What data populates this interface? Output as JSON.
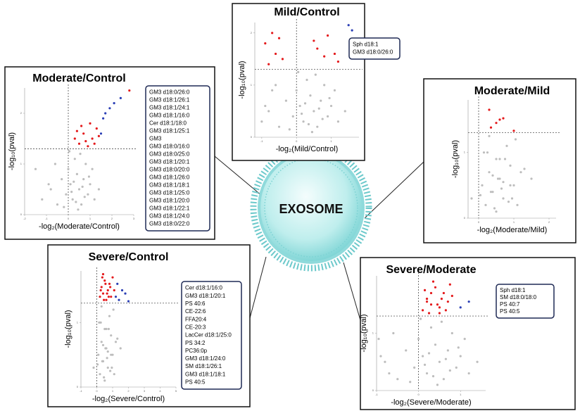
{
  "center_label": "EXOSOME",
  "chart_data": [
    {
      "type": "scatter",
      "title": "Moderate/Control",
      "x_label": "-log₂(Moderate/Control)",
      "y_label": "-log₁₀(pval)",
      "xlim": [
        -2,
        3
      ],
      "ylim": [
        0,
        2.5
      ],
      "xticks": [
        -2,
        -1,
        0,
        1,
        2,
        3
      ],
      "yticks": [
        0,
        1,
        2
      ],
      "vline": 0,
      "hline": 1.3,
      "annotations": [
        "GM3 d18:0/26:0",
        "GM3 d18:1/26:1",
        "GM3 d18:1/24:1",
        "GM3 d18:1/16:0",
        "Cer d18:1/18:0",
        "GM3 d18:1/25:1",
        "GM3",
        "GM3 d18:0/16:0",
        "GM3 d18:0/25:0",
        "GM3 d18:1/20:1",
        "GM3 d18:0/20:0",
        "GM3 d18:1/26:0",
        "GM3 d18:1/18:1",
        "GM3 d18:1/25:0",
        "GM3 d18:1/20:0",
        "GM3 d18:1/22:1",
        "GM3 d18:1/24:0",
        "GM3 d18:0/22:0"
      ],
      "series": [
        {
          "color": "#bdbdbd",
          "x": [
            -1.2,
            -0.8,
            -0.5,
            -0.3,
            -0.1,
            0,
            0.1,
            0.2,
            0.3,
            0.4,
            0.5,
            0.6,
            0.7,
            0.8,
            0.9,
            1.0,
            1.1,
            1.2,
            -0.6,
            -0.2,
            0.15,
            0.35,
            0.55,
            0.75,
            0.95,
            -0.9,
            0.05,
            0.45,
            0.65,
            1.4,
            -1.5,
            0.25
          ],
          "y": [
            0.3,
            0.5,
            0.2,
            0.7,
            0.4,
            0.9,
            0.6,
            0.3,
            1.1,
            0.8,
            0.5,
            0.2,
            0.7,
            1.0,
            0.4,
            0.6,
            0.9,
            0.3,
            1.0,
            0.15,
            0.45,
            0.25,
            1.2,
            0.35,
            0.75,
            0.6,
            1.25,
            0.1,
            0.55,
            0.5,
            0.9,
            0.65
          ]
        },
        {
          "color": "#e41a1c",
          "x": [
            0.3,
            0.5,
            0.7,
            0.9,
            1.1,
            1.3,
            0.6,
            0.8,
            1.0,
            1.2,
            0.4,
            1.4,
            2.8
          ],
          "y": [
            1.5,
            1.4,
            1.6,
            1.35,
            1.5,
            1.7,
            1.75,
            1.45,
            1.8,
            1.4,
            1.65,
            1.55,
            2.45
          ]
        },
        {
          "color": "#2b3fb5",
          "x": [
            1.5,
            1.6,
            1.7,
            1.9,
            2.1,
            2.4
          ],
          "y": [
            1.6,
            1.9,
            2.0,
            2.1,
            2.2,
            2.3
          ]
        }
      ]
    },
    {
      "type": "scatter",
      "title": "Mild/Control",
      "x_label": "-log₂(Mild/Control)",
      "y_label": "-log₁₀(pval)",
      "xlim": [
        -1.2,
        1.8
      ],
      "ylim": [
        0,
        2.2
      ],
      "xticks": [
        -1,
        0,
        1
      ],
      "yticks": [
        0,
        1,
        2
      ],
      "vline": 0,
      "hline": 1.3,
      "annotations": [
        "Sph d18:1",
        "GM3 d18:0/26:0"
      ],
      "series": [
        {
          "color": "#bdbdbd",
          "x": [
            -1.0,
            -0.8,
            -0.5,
            -0.3,
            -0.1,
            0,
            0.1,
            0.2,
            0.3,
            0.4,
            0.5,
            0.6,
            0.7,
            0.8,
            0.9,
            1.0,
            1.1,
            1.2,
            -0.6,
            -0.2,
            0.15,
            0.35,
            0.55,
            0.75,
            0.95,
            -0.9,
            0.05,
            0.45,
            0.65,
            1.4,
            -0.7,
            0.25
          ],
          "y": [
            0.3,
            0.5,
            0.2,
            0.7,
            0.4,
            0.9,
            0.6,
            0.3,
            1.1,
            0.8,
            0.5,
            0.2,
            0.7,
            1.0,
            0.4,
            0.6,
            0.9,
            0.3,
            1.0,
            0.15,
            0.45,
            0.25,
            1.2,
            0.35,
            0.75,
            0.6,
            1.25,
            0.1,
            0.55,
            0.5,
            0.9,
            0.65
          ]
        },
        {
          "color": "#e41a1c",
          "x": [
            -0.9,
            -0.7,
            -0.6,
            -0.4,
            -0.5,
            0.6,
            0.8,
            0.9,
            1.1,
            1.2,
            0.5,
            -0.8
          ],
          "y": [
            1.8,
            2.0,
            1.6,
            1.5,
            1.9,
            1.7,
            1.55,
            1.95,
            1.6,
            1.45,
            1.85,
            1.4
          ]
        },
        {
          "color": "#2b3fb5",
          "x": [
            1.5,
            1.6
          ],
          "y": [
            2.15,
            2.05
          ]
        }
      ]
    },
    {
      "type": "scatter",
      "title": "Moderate/Mild",
      "x_label": "-log₂(Moderate/Mild)",
      "y_label": "-log₁₀(pval)",
      "xlim": [
        -0.3,
        2.2
      ],
      "ylim": [
        0,
        1.8
      ],
      "xticks": [
        0,
        1,
        2
      ],
      "yticks": [
        0,
        1
      ],
      "vline": 0,
      "hline": 1.3,
      "series": [
        {
          "color": "#bdbdbd",
          "x": [
            -0.2,
            0.1,
            0.2,
            0.3,
            0.4,
            0.5,
            0.6,
            0.7,
            0.8,
            0.9,
            1.0,
            1.1,
            1.2,
            0.15,
            0.35,
            0.55,
            0.75,
            0.95,
            0.25,
            0.45,
            0.65,
            0.85,
            1.05,
            0.05,
            1.3,
            1.5,
            0.3,
            0.5,
            0.7,
            0.9,
            0.6,
            0.4
          ],
          "y": [
            0.3,
            0.5,
            0.2,
            0.7,
            0.4,
            0.9,
            0.6,
            0.3,
            1.1,
            0.8,
            0.5,
            0.2,
            0.7,
            1.0,
            0.4,
            0.6,
            0.9,
            0.3,
            1.0,
            0.15,
            0.45,
            0.25,
            1.2,
            0.35,
            0.75,
            0.6,
            1.25,
            0.1,
            0.55,
            0.5,
            0.9,
            0.65
          ]
        },
        {
          "color": "#e41a1c",
          "x": [
            0.3,
            0.5,
            0.6,
            0.7,
            0.35,
            1.0
          ],
          "y": [
            1.65,
            1.45,
            1.5,
            1.52,
            1.38,
            1.33
          ]
        }
      ]
    },
    {
      "type": "scatter",
      "title": "Severe/Control",
      "x_label": "-log₂(Severe/Control)",
      "y_label": "-log₁₀(pval)",
      "xlim": [
        -1,
        5
      ],
      "ylim": [
        0,
        1.8
      ],
      "xticks": [
        -1,
        0,
        1,
        2,
        3,
        4,
        5
      ],
      "yticks": [
        0,
        1
      ],
      "vline": 0,
      "hline": 1.3,
      "annotations": [
        "Cer d18:1/16:0",
        "GM3 d18:1/20:1",
        "PS 40:6",
        "CE-22:6",
        "FFA20:4",
        "CE-20:3",
        "LacCer d18:1/25:0",
        "PS 34:2",
        "PC36:0p",
        "GM3 d18:1/24:0",
        "SM d18:1/26:1",
        "GM3 d18:1/18:1",
        "PS 40:5"
      ],
      "series": [
        {
          "color": "#bdbdbd",
          "x": [
            -0.2,
            0.1,
            0.2,
            0.3,
            0.4,
            0.5,
            0.6,
            0.7,
            0.8,
            0.9,
            1.0,
            1.1,
            1.2,
            0.15,
            0.35,
            0.55,
            0.75,
            0.95,
            0.25,
            0.45,
            0.65,
            0.85,
            1.05,
            0.05,
            1.3,
            1.5,
            0.3,
            0.5,
            0.7,
            0.9,
            0.6,
            0.4
          ],
          "y": [
            0.3,
            0.5,
            0.2,
            0.7,
            0.4,
            0.9,
            0.6,
            0.3,
            1.1,
            0.8,
            0.5,
            0.2,
            0.7,
            1.0,
            0.4,
            0.6,
            0.9,
            0.3,
            1.0,
            0.15,
            0.45,
            0.25,
            1.2,
            0.35,
            0.75,
            0.6,
            1.25,
            0.1,
            0.55,
            0.5,
            0.9,
            0.65
          ]
        },
        {
          "color": "#e41a1c",
          "x": [
            0.2,
            0.3,
            0.4,
            0.5,
            0.6,
            0.7,
            0.8,
            0.9,
            1.0,
            0.25,
            0.45,
            0.65,
            0.85,
            0.35,
            0.55,
            0.75,
            1.1,
            0.4
          ],
          "y": [
            1.4,
            1.55,
            1.45,
            1.65,
            1.35,
            1.5,
            1.6,
            1.4,
            1.7,
            1.5,
            1.35,
            1.45,
            1.55,
            1.7,
            1.6,
            1.4,
            1.5,
            1.75
          ]
        },
        {
          "color": "#2b3fb5",
          "x": [
            1.2,
            1.4,
            1.6,
            1.8,
            1.3,
            2.0
          ],
          "y": [
            1.4,
            1.35,
            1.5,
            1.45,
            1.6,
            1.33
          ]
        }
      ]
    },
    {
      "type": "scatter",
      "title": "Severe/Moderate",
      "x_label": "-log₂(Severe/Moderate)",
      "y_label": "-log₁₀(pval)",
      "xlim": [
        -1,
        1.6
      ],
      "ylim": [
        0,
        2
      ],
      "xticks": [
        -1,
        0,
        1
      ],
      "yticks": [
        0,
        1
      ],
      "vline": 0,
      "hline": 1.3,
      "annotations": [
        "Sph d18:1",
        "SM d18:0/18:0",
        "PS 40:7",
        "PS 40:5"
      ],
      "series": [
        {
          "color": "#bdbdbd",
          "x": [
            -0.7,
            -0.8,
            -0.5,
            -0.3,
            -0.1,
            0,
            0.1,
            0.2,
            0.3,
            0.4,
            0.5,
            0.6,
            0.7,
            0.8,
            0.9,
            1.0,
            1.1,
            1.2,
            -0.6,
            -0.2,
            0.15,
            0.35,
            0.55,
            0.75,
            0.95,
            -0.9,
            0.05,
            0.45,
            0.65,
            1.4,
            -0.95,
            0.25
          ],
          "y": [
            0.3,
            0.5,
            0.2,
            0.7,
            0.4,
            0.9,
            0.6,
            0.3,
            1.1,
            0.8,
            0.5,
            0.2,
            0.7,
            1.0,
            0.4,
            0.6,
            0.9,
            0.3,
            1.0,
            0.15,
            0.45,
            0.25,
            1.2,
            0.35,
            0.75,
            0.6,
            1.25,
            0.1,
            0.55,
            0.5,
            0.9,
            0.65
          ]
        },
        {
          "color": "#e41a1c",
          "x": [
            0.1,
            0.2,
            0.3,
            0.4,
            0.5,
            0.6,
            0.7,
            0.8,
            0.15,
            0.25,
            0.35,
            0.45,
            0.55,
            0.65,
            0.75,
            0.3,
            0.5,
            0.2
          ],
          "y": [
            1.4,
            1.6,
            1.5,
            1.8,
            1.45,
            1.7,
            1.55,
            1.65,
            1.75,
            1.35,
            1.9,
            1.5,
            1.6,
            1.4,
            1.85,
            1.7,
            1.35,
            1.55
          ]
        },
        {
          "color": "#2b3fb5",
          "x": [
            1.0,
            1.2
          ],
          "y": [
            1.45,
            1.55
          ]
        }
      ]
    }
  ]
}
